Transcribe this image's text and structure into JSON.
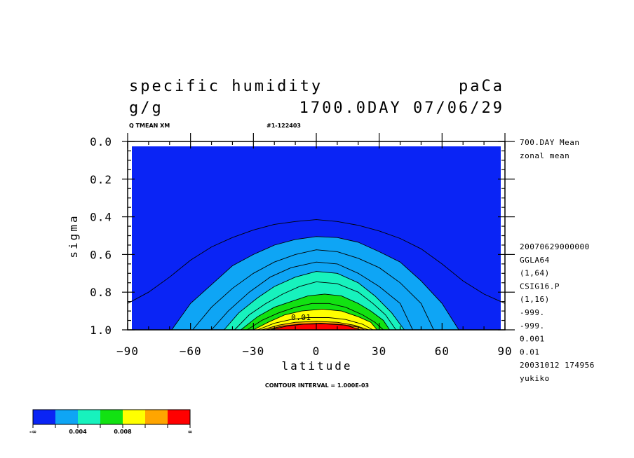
{
  "header": {
    "title": "specific humidity",
    "run": "paCa",
    "unit": "g/g",
    "datetime": "1700.0DAY 07/06/29",
    "var_label": "Q TMEAN XM",
    "id_label": "#1-122403",
    "contour_interval": "CONTOUR INTERVAL = 1.000E-03"
  },
  "side_info": {
    "top": [
      "700.DAY Mean",
      "zonal mean"
    ],
    "bottom": [
      "20070629000000",
      "GGLA64",
      "(1,64)",
      "CSIG16.P",
      "(1,16)",
      "-999.",
      "-999.",
      "0.001",
      "0.01",
      "20031012 174956",
      "yukiko"
    ]
  },
  "colorbar": {
    "colors": [
      "#0a24f5",
      "#0ea5f5",
      "#17f2bd",
      "#12e212",
      "#ffff00",
      "#ffa500",
      "#ff0000"
    ],
    "labels": [
      "-∞",
      "0.004",
      "0.008",
      "∞"
    ]
  },
  "chart_data": {
    "type": "contour",
    "xlabel": "latitude",
    "ylabel": "sigma",
    "xlim": [
      -90,
      90
    ],
    "ylim": [
      0.0,
      1.0
    ],
    "y_inverted": true,
    "xticks": [
      "−90",
      "−60",
      "−30",
      "0",
      "30",
      "60",
      "90"
    ],
    "yticks": [
      "0.0",
      "0.2",
      "0.4",
      "0.6",
      "0.8",
      "1.0"
    ],
    "contour_interval": 0.001,
    "contour_label": "0.01",
    "fill_levels": [
      {
        "level": 0.001,
        "color": "#0ea5f5",
        "points": [
          [
            -69,
            1.0
          ],
          [
            -60,
            0.86
          ],
          [
            -50,
            0.76
          ],
          [
            -40,
            0.66
          ],
          [
            -30,
            0.6
          ],
          [
            -20,
            0.55
          ],
          [
            -10,
            0.52
          ],
          [
            0,
            0.505
          ],
          [
            10,
            0.51
          ],
          [
            20,
            0.535
          ],
          [
            30,
            0.585
          ],
          [
            40,
            0.64
          ],
          [
            50,
            0.74
          ],
          [
            60,
            0.86
          ],
          [
            68,
            1.0
          ]
        ]
      },
      {
        "level": 0.002,
        "color": "#0ea5f5",
        "points": [
          [
            -59,
            1.0
          ],
          [
            -50,
            0.88
          ],
          [
            -40,
            0.78
          ],
          [
            -30,
            0.7
          ],
          [
            -20,
            0.64
          ],
          [
            -10,
            0.6
          ],
          [
            0,
            0.575
          ],
          [
            10,
            0.585
          ],
          [
            20,
            0.62
          ],
          [
            30,
            0.67
          ],
          [
            40,
            0.75
          ],
          [
            50,
            0.86
          ],
          [
            56,
            1.0
          ]
        ]
      },
      {
        "level": 0.003,
        "color": "#0ea5f5",
        "points": [
          [
            -50,
            1.0
          ],
          [
            -42,
            0.9
          ],
          [
            -32,
            0.8
          ],
          [
            -22,
            0.72
          ],
          [
            -12,
            0.67
          ],
          [
            0,
            0.64
          ],
          [
            10,
            0.65
          ],
          [
            20,
            0.7
          ],
          [
            30,
            0.77
          ],
          [
            40,
            0.86
          ],
          [
            46,
            1.0
          ]
        ]
      },
      {
        "level": 0.004,
        "color": "#17f2bd",
        "points": [
          [
            -44,
            1.0
          ],
          [
            -37,
            0.91
          ],
          [
            -28,
            0.83
          ],
          [
            -20,
            0.77
          ],
          [
            -10,
            0.72
          ],
          [
            0,
            0.69
          ],
          [
            10,
            0.7
          ],
          [
            20,
            0.75
          ],
          [
            28,
            0.82
          ],
          [
            36,
            0.91
          ],
          [
            42,
            1.0
          ]
        ]
      },
      {
        "level": 0.005,
        "color": "#17f2bd",
        "points": [
          [
            -39,
            1.0
          ],
          [
            -32,
            0.92
          ],
          [
            -24,
            0.86
          ],
          [
            -16,
            0.81
          ],
          [
            -8,
            0.77
          ],
          [
            0,
            0.745
          ],
          [
            10,
            0.755
          ],
          [
            20,
            0.8
          ],
          [
            27,
            0.86
          ],
          [
            33,
            0.92
          ],
          [
            38,
            1.0
          ]
        ]
      },
      {
        "level": 0.006,
        "color": "#12e212",
        "points": [
          [
            -36,
            1.0
          ],
          [
            -28,
            0.93
          ],
          [
            -20,
            0.88
          ],
          [
            -12,
            0.85
          ],
          [
            -4,
            0.82
          ],
          [
            4,
            0.81
          ],
          [
            12,
            0.82
          ],
          [
            20,
            0.86
          ],
          [
            26,
            0.9
          ],
          [
            32,
            0.95
          ],
          [
            35,
            1.0
          ]
        ]
      },
      {
        "level": 0.007,
        "color": "#12e212",
        "points": [
          [
            -33,
            1.0
          ],
          [
            -26,
            0.95
          ],
          [
            -18,
            0.91
          ],
          [
            -10,
            0.88
          ],
          [
            -2,
            0.86
          ],
          [
            6,
            0.86
          ],
          [
            14,
            0.88
          ],
          [
            22,
            0.92
          ],
          [
            28,
            0.96
          ],
          [
            32,
            1.0
          ]
        ]
      },
      {
        "level": 0.008,
        "color": "#ffff00",
        "points": [
          [
            -30,
            1.0
          ],
          [
            -23,
            0.96
          ],
          [
            -15,
            0.92
          ],
          [
            -7,
            0.9
          ],
          [
            3,
            0.89
          ],
          [
            12,
            0.9
          ],
          [
            20,
            0.93
          ],
          [
            26,
            0.96
          ],
          [
            29,
            1.0
          ]
        ]
      },
      {
        "level": 0.009,
        "color": "#ffff00",
        "points": [
          [
            -28,
            1.0
          ],
          [
            -20,
            0.965
          ],
          [
            -12,
            0.945
          ],
          [
            -4,
            0.935
          ],
          [
            6,
            0.935
          ],
          [
            14,
            0.945
          ],
          [
            22,
            0.97
          ],
          [
            27,
            1.0
          ]
        ]
      },
      {
        "level": 0.01,
        "color": "#ffa500",
        "points": [
          [
            -26,
            1.0
          ],
          [
            -18,
            0.975
          ],
          [
            -10,
            0.96
          ],
          [
            0,
            0.955
          ],
          [
            10,
            0.96
          ],
          [
            18,
            0.975
          ],
          [
            25,
            1.0
          ]
        ]
      },
      {
        "level": 0.011,
        "color": "#ffa500",
        "points": [
          [
            -24,
            1.0
          ],
          [
            -16,
            0.98
          ],
          [
            -8,
            0.97
          ],
          [
            2,
            0.965
          ],
          [
            12,
            0.972
          ],
          [
            20,
            0.985
          ],
          [
            23,
            1.0
          ]
        ]
      },
      {
        "level": 0.012,
        "color": "#ff0000",
        "points": [
          [
            -22,
            1.0
          ],
          [
            -14,
            0.98
          ],
          [
            -6,
            0.97
          ],
          [
            4,
            0.968
          ],
          [
            14,
            0.975
          ],
          [
            21,
            1.0
          ]
        ]
      }
    ],
    "outer_contour": {
      "level": 0.0005,
      "points": [
        [
          -90,
          0.86
        ],
        [
          -80,
          0.8
        ],
        [
          -70,
          0.72
        ],
        [
          -60,
          0.63
        ],
        [
          -50,
          0.56
        ],
        [
          -40,
          0.51
        ],
        [
          -30,
          0.47
        ],
        [
          -20,
          0.44
        ],
        [
          -10,
          0.425
        ],
        [
          0,
          0.415
        ],
        [
          10,
          0.425
        ],
        [
          20,
          0.445
        ],
        [
          30,
          0.475
        ],
        [
          40,
          0.515
        ],
        [
          50,
          0.57
        ],
        [
          60,
          0.65
        ],
        [
          70,
          0.74
        ],
        [
          80,
          0.81
        ],
        [
          90,
          0.86
        ]
      ]
    }
  }
}
